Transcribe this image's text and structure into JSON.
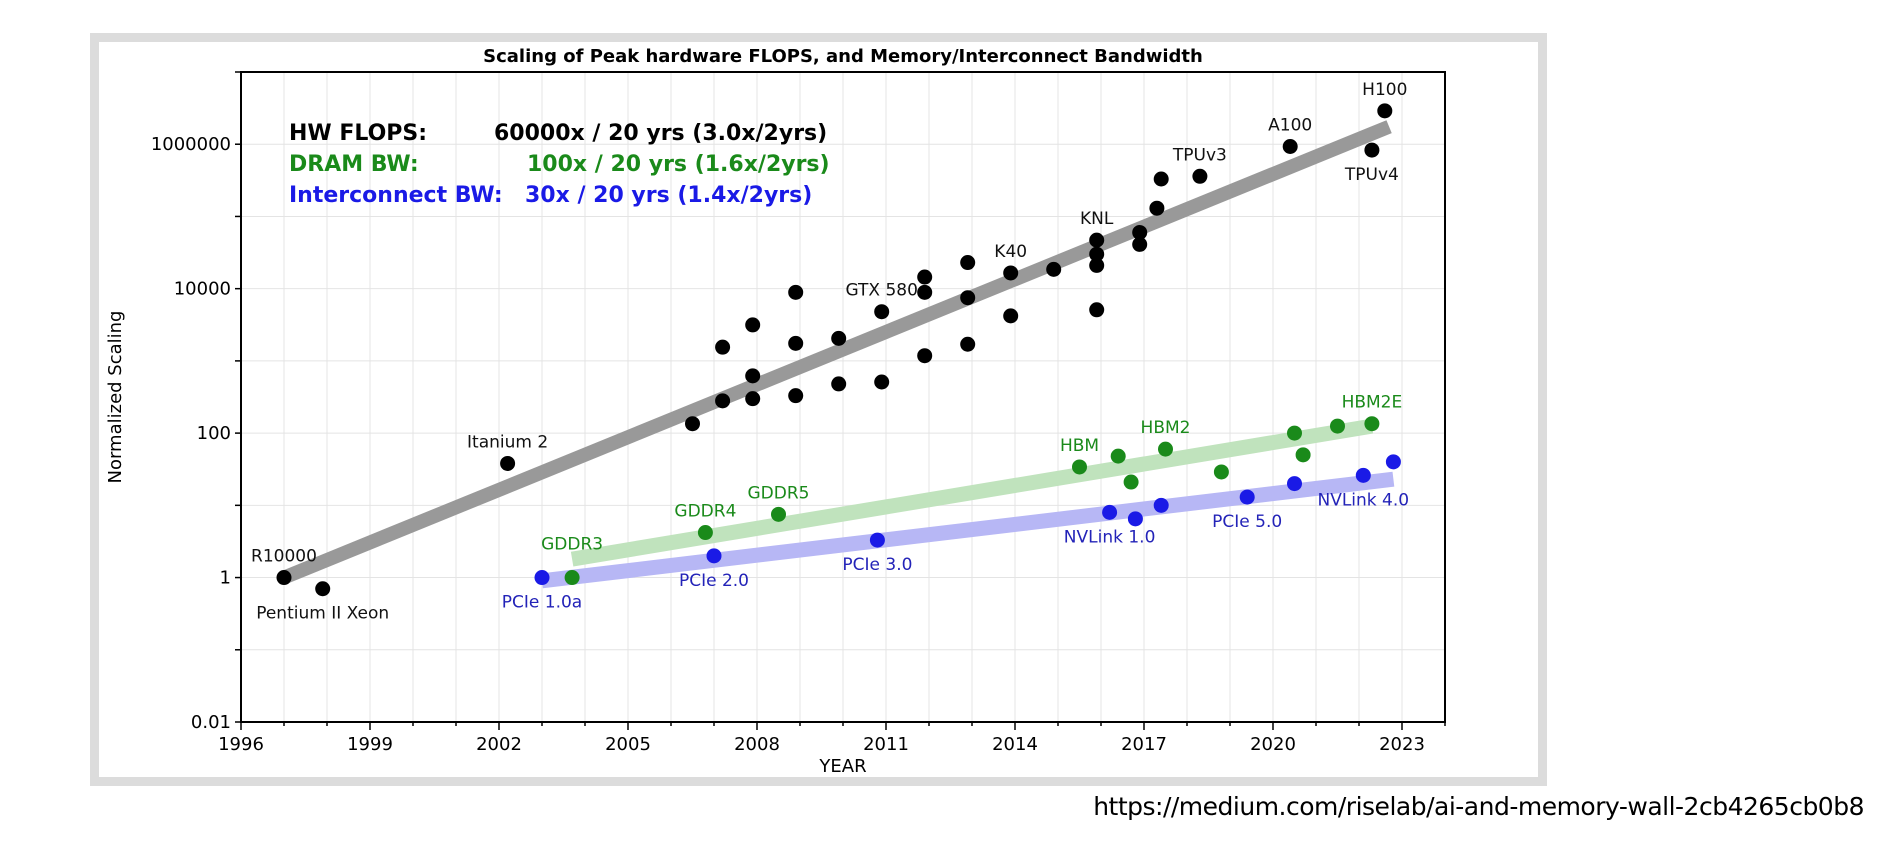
{
  "source_url": "https://medium.com/riselab/ai-and-memory-wall-2cb4265cb0b8",
  "chart_data": {
    "type": "scatter",
    "title": "Scaling of Peak hardware FLOPS, and Memory/Interconnect Bandwidth",
    "xlabel": "YEAR",
    "ylabel": "Normalized Scaling",
    "yscale": "log",
    "xlim": [
      1996,
      2024
    ],
    "ylim": [
      0.01,
      10000000
    ],
    "xticks": [
      "1996",
      "1999",
      "2002",
      "2005",
      "2008",
      "2011",
      "2014",
      "2017",
      "2020",
      "2023"
    ],
    "yticks": [
      "0.01",
      "1",
      "100",
      "10000",
      "1000000"
    ],
    "grid": true,
    "legend_placement": "top-left",
    "legend": [
      {
        "label": "HW FLOPS:",
        "value": "60000x / 20 yrs (3.0x/2yrs)",
        "color": "#000000"
      },
      {
        "label": "DRAM BW:",
        "value": "100x / 20 yrs (1.6x/2yrs)",
        "color": "#1a8a1a"
      },
      {
        "label": "Interconnect BW:",
        "value": "30x / 20 yrs (1.4x/2yrs)",
        "color": "#1a1ae6"
      }
    ],
    "series": [
      {
        "name": "HW FLOPS",
        "color": "#000000",
        "trend_color": "#999999",
        "trend": [
          [
            1997,
            1
          ],
          [
            2022.7,
            1750000
          ]
        ],
        "points": [
          [
            1997,
            1
          ],
          [
            1997.9,
            0.7
          ],
          [
            2002.2,
            38
          ],
          [
            2006.5,
            135
          ],
          [
            2007.2,
            280
          ],
          [
            2007.2,
            1550
          ],
          [
            2007.9,
            300
          ],
          [
            2007.9,
            620
          ],
          [
            2007.9,
            3150
          ],
          [
            2008.9,
            330
          ],
          [
            2008.9,
            1750
          ],
          [
            2008.9,
            8900
          ],
          [
            2009.9,
            480
          ],
          [
            2009.9,
            2050
          ],
          [
            2010.9,
            510
          ],
          [
            2010.9,
            4800
          ],
          [
            2011.9,
            1180
          ],
          [
            2011.9,
            8900
          ],
          [
            2011.9,
            14500
          ],
          [
            2012.9,
            1700
          ],
          [
            2012.9,
            7500
          ],
          [
            2012.9,
            23000
          ],
          [
            2013.9,
            4200
          ],
          [
            2013.9,
            16500
          ],
          [
            2014.9,
            18500
          ],
          [
            2015.9,
            5100
          ],
          [
            2015.9,
            21000
          ],
          [
            2015.9,
            30000
          ],
          [
            2015.9,
            47000
          ],
          [
            2016.9,
            41000
          ],
          [
            2016.9,
            60000
          ],
          [
            2017.3,
            130000
          ],
          [
            2017.4,
            330000
          ],
          [
            2018.3,
            360000
          ],
          [
            2020.4,
            930000
          ],
          [
            2022.3,
            830000
          ],
          [
            2022.6,
            2900000
          ]
        ],
        "labels": [
          {
            "text": "R10000",
            "x": 1997,
            "y": 1,
            "pos": "above"
          },
          {
            "text": "Pentium II Xeon",
            "x": 1997.9,
            "y": 0.7,
            "pos": "below"
          },
          {
            "text": "Itanium 2",
            "x": 2002.2,
            "y": 38,
            "pos": "above"
          },
          {
            "text": "GTX 580",
            "x": 2010.9,
            "y": 4800,
            "pos": "above"
          },
          {
            "text": "K40",
            "x": 2013.9,
            "y": 16500,
            "pos": "above"
          },
          {
            "text": "KNL",
            "x": 2015.9,
            "y": 47000,
            "pos": "above"
          },
          {
            "text": "TPUv3",
            "x": 2018.3,
            "y": 360000,
            "pos": "above"
          },
          {
            "text": "A100",
            "x": 2020.4,
            "y": 930000,
            "pos": "above"
          },
          {
            "text": "TPUv4",
            "x": 2022.3,
            "y": 830000,
            "pos": "below"
          },
          {
            "text": "H100",
            "x": 2022.6,
            "y": 2900000,
            "pos": "above"
          }
        ]
      },
      {
        "name": "DRAM BW",
        "color": "#1a8a1a",
        "trend_color": "#c0e3bd",
        "trend": [
          [
            2003.7,
            1.8
          ],
          [
            2022.3,
            125
          ]
        ],
        "points": [
          [
            2003.7,
            1
          ],
          [
            2006.8,
            4.2
          ],
          [
            2008.5,
            7.5
          ],
          [
            2015.5,
            34
          ],
          [
            2016.4,
            48
          ],
          [
            2016.7,
            21
          ],
          [
            2017.5,
            60
          ],
          [
            2018.8,
            29
          ],
          [
            2020.5,
            100
          ],
          [
            2020.7,
            50
          ],
          [
            2021.5,
            125
          ],
          [
            2022.3,
            135
          ]
        ],
        "labels": [
          {
            "text": "GDDR3",
            "x": 2003.7,
            "y": 1,
            "pos": "above-high"
          },
          {
            "text": "GDDR4",
            "x": 2006.8,
            "y": 4.2,
            "pos": "above"
          },
          {
            "text": "GDDR5",
            "x": 2008.5,
            "y": 7.5,
            "pos": "above"
          },
          {
            "text": "HBM",
            "x": 2015.5,
            "y": 34,
            "pos": "above"
          },
          {
            "text": "HBM2",
            "x": 2017.5,
            "y": 60,
            "pos": "above"
          },
          {
            "text": "HBM2E",
            "x": 2022.3,
            "y": 135,
            "pos": "above"
          }
        ]
      },
      {
        "name": "Interconnect BW",
        "color": "#1a1ae6",
        "trend_color": "#b7b7f5",
        "trend": [
          [
            2003,
            0.9
          ],
          [
            2022.8,
            23
          ]
        ],
        "points": [
          [
            2003,
            1
          ],
          [
            2007,
            2
          ],
          [
            2010.8,
            3.3
          ],
          [
            2016.2,
            8
          ],
          [
            2016.8,
            6.5
          ],
          [
            2017.4,
            10
          ],
          [
            2019.4,
            13
          ],
          [
            2020.5,
            20
          ],
          [
            2022.1,
            26
          ],
          [
            2022.8,
            40
          ]
        ],
        "labels": [
          {
            "text": "PCIe 1.0a",
            "x": 2003,
            "y": 1,
            "pos": "below"
          },
          {
            "text": "PCIe 2.0",
            "x": 2007,
            "y": 2,
            "pos": "below"
          },
          {
            "text": "PCIe 3.0",
            "x": 2010.8,
            "y": 3.3,
            "pos": "below"
          },
          {
            "text": "NVLink 1.0",
            "x": 2016.2,
            "y": 8,
            "pos": "below"
          },
          {
            "text": "PCIe 5.0",
            "x": 2019.4,
            "y": 13,
            "pos": "below"
          },
          {
            "text": "NVLink 4.0",
            "x": 2022.1,
            "y": 26,
            "pos": "below"
          }
        ]
      }
    ]
  }
}
